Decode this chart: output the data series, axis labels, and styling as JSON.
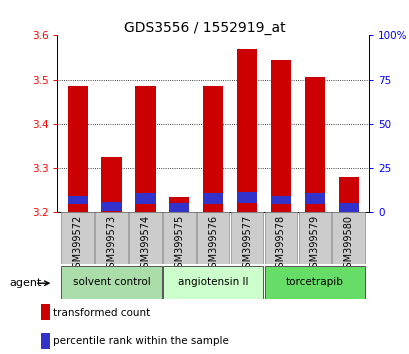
{
  "title": "GDS3556 / 1552919_at",
  "samples": [
    "GSM399572",
    "GSM399573",
    "GSM399574",
    "GSM399575",
    "GSM399576",
    "GSM399577",
    "GSM399578",
    "GSM399579",
    "GSM399580"
  ],
  "baseline": 3.2,
  "red_tops": [
    3.485,
    3.325,
    3.485,
    3.235,
    3.485,
    3.57,
    3.545,
    3.505,
    3.28
  ],
  "blue_tops": [
    3.238,
    3.223,
    3.243,
    3.222,
    3.243,
    3.246,
    3.238,
    3.243,
    3.222
  ],
  "blue_bottoms": [
    3.218,
    3.203,
    3.218,
    3.202,
    3.218,
    3.222,
    3.218,
    3.218,
    3.202
  ],
  "ylim": [
    3.2,
    3.6
  ],
  "yticks_left": [
    3.2,
    3.3,
    3.4,
    3.5,
    3.6
  ],
  "yticks_right": [
    0,
    25,
    50,
    75,
    100
  ],
  "ytick_right_labels": [
    "0",
    "25",
    "50",
    "75",
    "100%"
  ],
  "red_color": "#cc0000",
  "blue_color": "#3333cc",
  "bar_width": 0.6,
  "groups": [
    {
      "label": "solvent control",
      "indices": [
        0,
        1,
        2
      ],
      "color": "#aaddaa"
    },
    {
      "label": "angiotensin II",
      "indices": [
        3,
        4,
        5
      ],
      "color": "#ccffcc"
    },
    {
      "label": "torcetrapib",
      "indices": [
        6,
        7,
        8
      ],
      "color": "#66dd66"
    }
  ],
  "agent_label": "agent",
  "legend_red": "transformed count",
  "legend_blue": "percentile rank within the sample",
  "title_fontsize": 10,
  "tick_fontsize": 7.5,
  "label_fontsize": 7,
  "group_fontsize": 7.5
}
